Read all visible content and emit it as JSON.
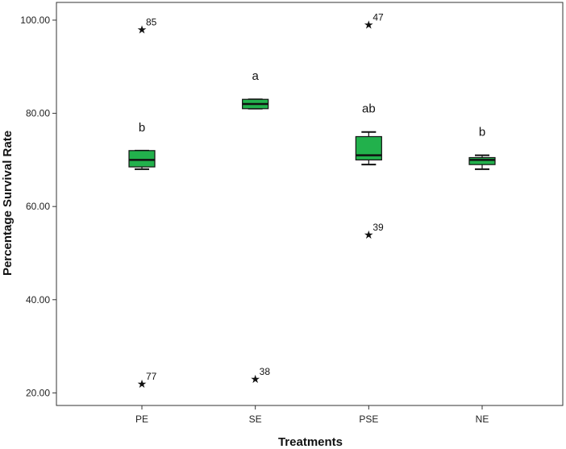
{
  "chart_data": {
    "type": "boxplot",
    "xlabel": "Treatments",
    "ylabel": "Percentage Survival Rate",
    "ylim": [
      17.3,
      103.8
    ],
    "yticks": [
      20,
      40,
      60,
      80,
      100
    ],
    "ytick_labels": [
      "20.00",
      "40.00",
      "60.00",
      "80.00",
      "100.00"
    ],
    "categories": [
      "PE",
      "SE",
      "PSE",
      "NE"
    ],
    "box_color": "#22b14c",
    "grid": false,
    "boxes": [
      {
        "category": "PE",
        "whisker_low": 68,
        "q1": 68.5,
        "median": 70,
        "q3": 72,
        "whisker_high": 72,
        "letter": "b",
        "outliers": [
          {
            "value": 98,
            "label": "85"
          },
          {
            "value": 22,
            "label": "77"
          }
        ]
      },
      {
        "category": "SE",
        "whisker_low": 81,
        "q1": 81,
        "median": 82,
        "q3": 83,
        "whisker_high": 83,
        "letter": "a",
        "outliers": [
          {
            "value": 23,
            "label": "38"
          }
        ]
      },
      {
        "category": "PSE",
        "whisker_low": 69,
        "q1": 70,
        "median": 71,
        "q3": 75,
        "whisker_high": 76,
        "letter": "ab",
        "outliers": [
          {
            "value": 99,
            "label": "47"
          },
          {
            "value": 54,
            "label": "39"
          }
        ]
      },
      {
        "category": "NE",
        "whisker_low": 68,
        "q1": 69,
        "median": 70,
        "q3": 70.5,
        "whisker_high": 71,
        "letter": "b",
        "outliers": []
      }
    ]
  }
}
